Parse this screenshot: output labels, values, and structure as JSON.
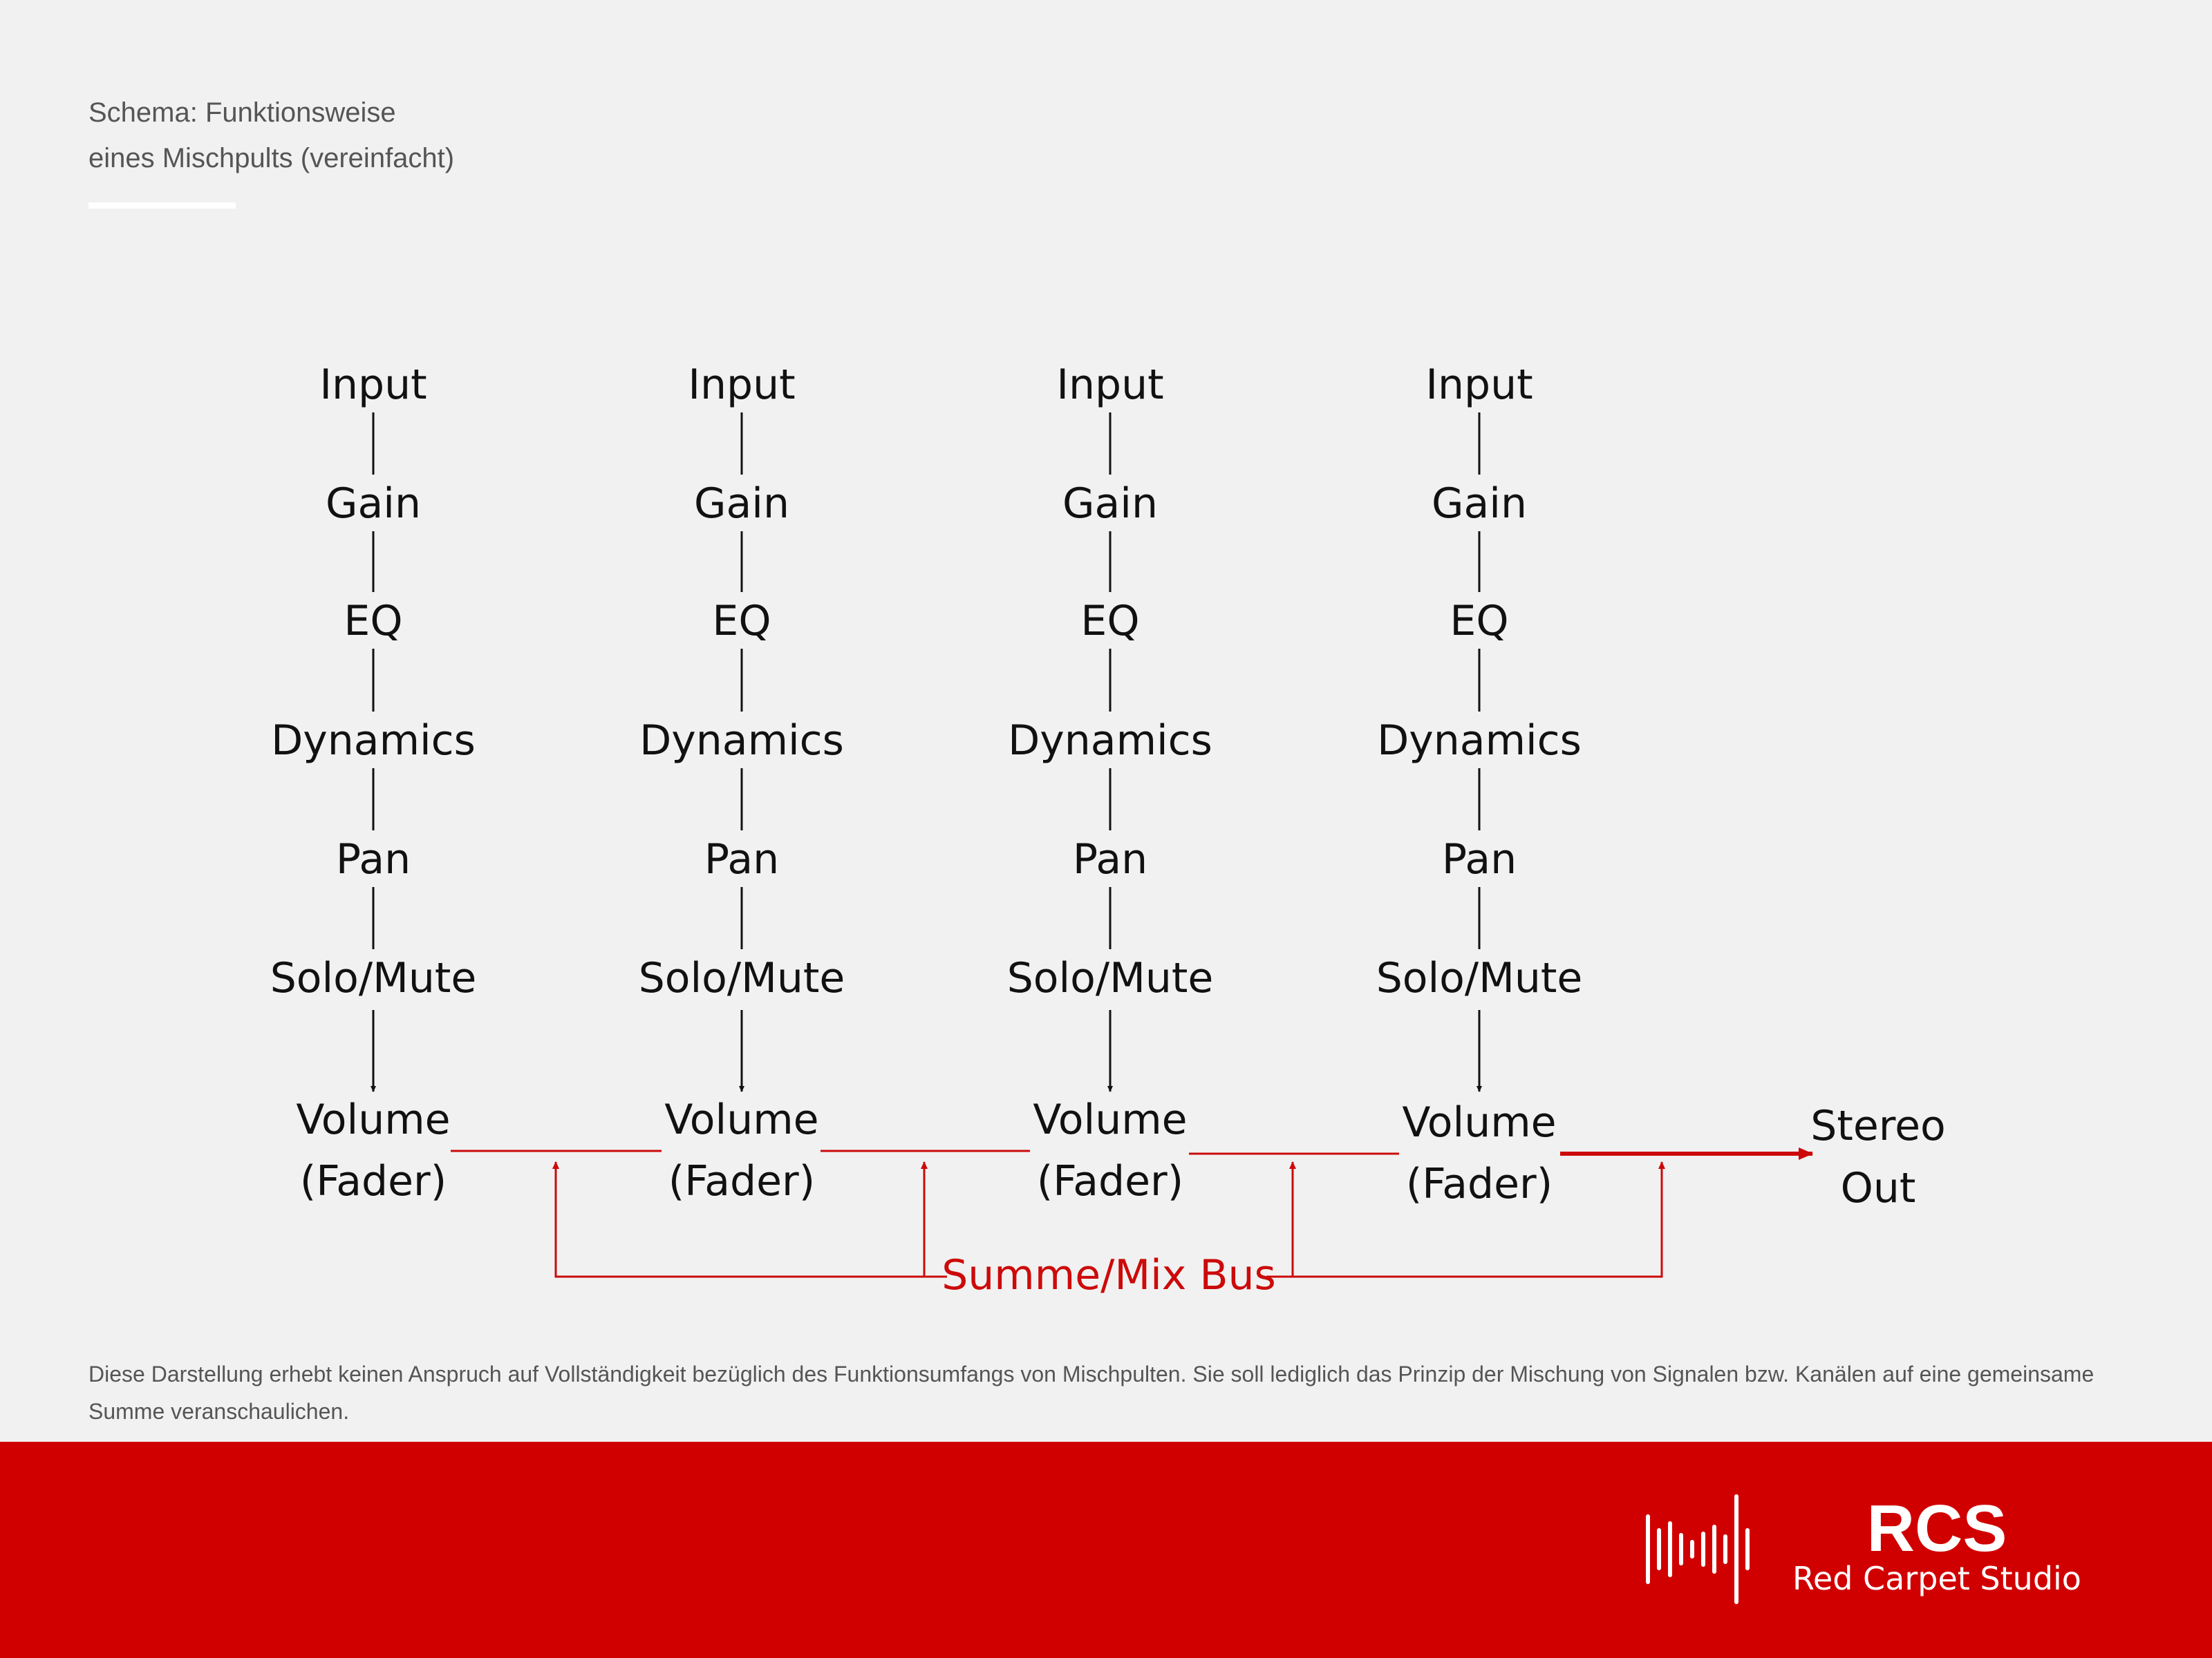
{
  "header": {
    "title_line1": "Schema: Funktionsweise",
    "title_line2": "eines Mischpults (vereinfacht)"
  },
  "diagram": {
    "channels": [
      {
        "stages": [
          "Input",
          "Gain",
          "EQ",
          "Dynamics",
          "Pan",
          "Solo/Mute"
        ],
        "volume_line1": "Volume",
        "volume_line2": "(Fader)"
      },
      {
        "stages": [
          "Input",
          "Gain",
          "EQ",
          "Dynamics",
          "Pan",
          "Solo/Mute"
        ],
        "volume_line1": "Volume",
        "volume_line2": "(Fader)"
      },
      {
        "stages": [
          "Input",
          "Gain",
          "EQ",
          "Dynamics",
          "Pan",
          "Solo/Mute"
        ],
        "volume_line1": "Volume",
        "volume_line2": "(Fader)"
      },
      {
        "stages": [
          "Input",
          "Gain",
          "EQ",
          "Dynamics",
          "Pan",
          "Solo/Mute"
        ],
        "volume_line1": "Volume",
        "volume_line2": "(Fader)"
      }
    ],
    "output_line1": "Stereo",
    "output_line2": "Out",
    "bus_label": "Summe/Mix Bus"
  },
  "note": "Diese Darstellung erhebt keinen Anspruch auf Vollständigkeit bezüglich des Funktionsumfangs von Mischpulten. Sie soll lediglich das Prinzip der Mischung von Signalen bzw. Kanälen auf eine gemeinsame Summe veranschaulichen.",
  "brand": {
    "short": "RCS",
    "name": "Red Carpet Studio"
  },
  "colors": {
    "background": "#f1f1f1",
    "accent": "#d10000",
    "bus_line": "#cc0a0a",
    "text": "#111111"
  },
  "icons": {
    "logo": "soundwave-logo-icon"
  }
}
